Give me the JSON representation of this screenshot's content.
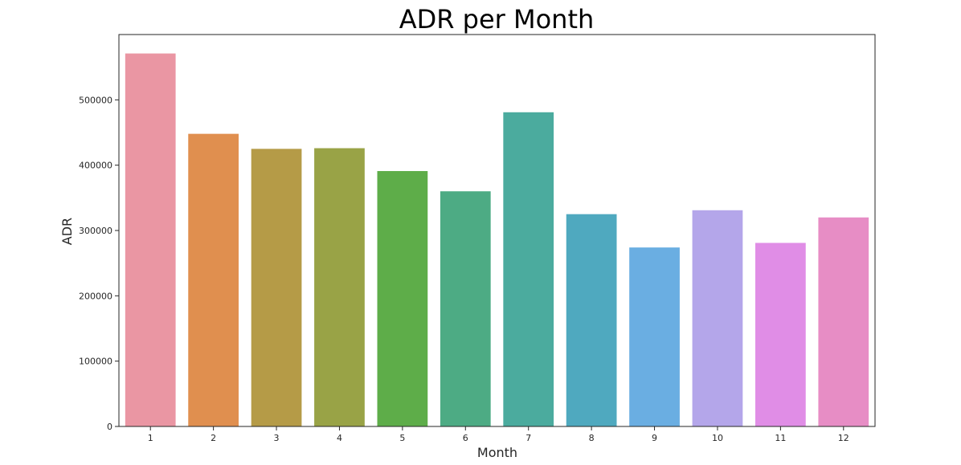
{
  "chart_data": {
    "type": "bar",
    "title": "ADR per Month",
    "xlabel": "Month",
    "ylabel": "ADR",
    "categories": [
      "1",
      "2",
      "3",
      "4",
      "5",
      "6",
      "7",
      "8",
      "9",
      "10",
      "11",
      "12"
    ],
    "values": [
      571000,
      448000,
      425000,
      426000,
      391000,
      360000,
      481000,
      325000,
      274000,
      331000,
      281000,
      320000
    ],
    "colors": [
      "#ea96a3",
      "#e08f4f",
      "#b59b47",
      "#99a346",
      "#5ead49",
      "#4dab84",
      "#4bab9e",
      "#4fa9bf",
      "#6aaee2",
      "#b4a6ea",
      "#e08de6",
      "#e78dc5"
    ],
    "ylim": [
      0,
      600000
    ],
    "yticks": [
      0,
      100000,
      200000,
      300000,
      400000,
      500000
    ],
    "ytick_labels": [
      "0",
      "100000",
      "200000",
      "300000",
      "400000",
      "500000"
    ],
    "grid": false,
    "legend": "none"
  }
}
